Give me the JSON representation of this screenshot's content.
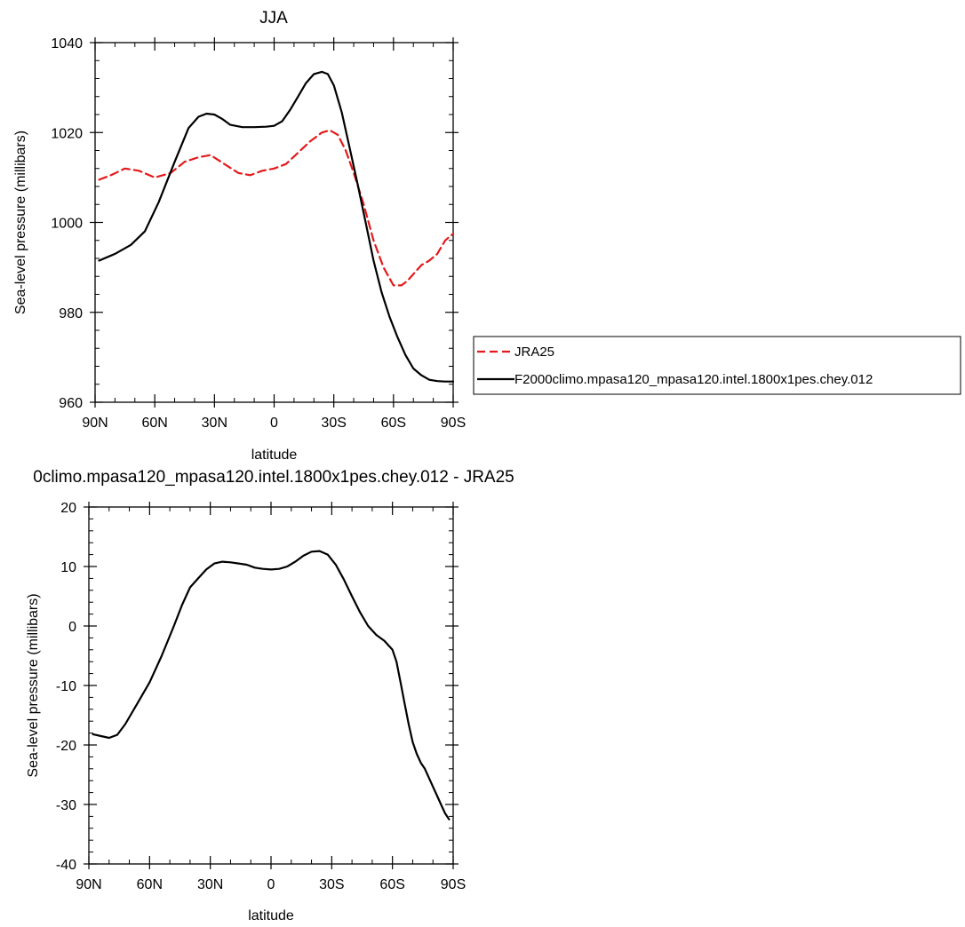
{
  "chart_data": [
    {
      "type": "line",
      "title": "JJA",
      "xlabel": "latitude",
      "ylabel": "Sea-level pressure (millibars)",
      "xlim": [
        -90,
        90
      ],
      "ylim": [
        960,
        1040
      ],
      "xticks": [
        -90,
        -60,
        -30,
        0,
        30,
        60,
        90
      ],
      "xtick_labels": [
        "90N",
        "60N",
        "30N",
        "0",
        "30S",
        "60S",
        "90S"
      ],
      "yticks": [
        960,
        980,
        1000,
        1020,
        1040
      ],
      "ytick_labels": [
        "960",
        "980",
        "1000",
        "1020",
        "1040"
      ],
      "grid": false,
      "legend_position": "right",
      "series": [
        {
          "name": "JRA25",
          "color": "#e41a1c",
          "dash": "dashed",
          "x": [
            -88,
            -82,
            -75,
            -68,
            -60,
            -52,
            -45,
            -38,
            -32,
            -25,
            -18,
            -12,
            -6,
            0,
            6,
            12,
            18,
            24,
            28,
            32,
            36,
            40,
            45,
            50,
            55,
            60,
            64,
            67,
            70,
            74,
            78,
            82,
            86,
            90
          ],
          "y": [
            1009.5,
            1010.5,
            1012,
            1011.5,
            1010,
            1011,
            1013.5,
            1014.5,
            1015,
            1013,
            1011,
            1010.5,
            1011.5,
            1012,
            1013,
            1015.5,
            1018,
            1020,
            1020.5,
            1019.5,
            1016,
            1011,
            1004,
            996,
            990,
            986,
            986,
            987,
            988.5,
            990.5,
            991.5,
            993,
            996,
            997.5
          ]
        },
        {
          "name": "F2000climo.mpasa120_mpasa120.intel.1800x1pes.chey.012",
          "color": "#000000",
          "dash": "solid",
          "x": [
            -88,
            -80,
            -72,
            -65,
            -58,
            -50,
            -43,
            -38,
            -34,
            -30,
            -26,
            -22,
            -16,
            -10,
            -4,
            0,
            4,
            8,
            12,
            16,
            20,
            24,
            27,
            30,
            34,
            38,
            42,
            46,
            50,
            54,
            58,
            62,
            66,
            70,
            74,
            78,
            82,
            86,
            90
          ],
          "y": [
            991.5,
            993,
            995,
            998,
            1004.5,
            1013.5,
            1021,
            1023.5,
            1024.2,
            1024,
            1023,
            1021.7,
            1021.2,
            1021.2,
            1021.3,
            1021.5,
            1022.5,
            1025,
            1028,
            1031,
            1033,
            1033.5,
            1033,
            1030.5,
            1024.5,
            1016.5,
            1008.5,
            1000,
            991.5,
            984.5,
            979,
            974.5,
            970.5,
            967.5,
            966,
            965,
            964.7,
            964.6,
            964.6
          ]
        }
      ]
    },
    {
      "type": "line",
      "title": "0climo.mpasa120_mpasa120.intel.1800x1pes.chey.012 - JRA25",
      "xlabel": "latitude",
      "ylabel": "Sea-level pressure (millibars)",
      "xlim": [
        -90,
        90
      ],
      "ylim": [
        -40,
        20
      ],
      "xticks": [
        -90,
        -60,
        -30,
        0,
        30,
        60,
        90
      ],
      "xtick_labels": [
        "90N",
        "60N",
        "30N",
        "0",
        "30S",
        "60S",
        "90S"
      ],
      "yticks": [
        -40,
        -30,
        -20,
        -10,
        0,
        10,
        20
      ],
      "ytick_labels": [
        "-40",
        "-30",
        "-20",
        "-10",
        "0",
        "10",
        "20"
      ],
      "grid": false,
      "series": [
        {
          "color": "#000000",
          "dash": "solid",
          "x": [
            -88,
            -84,
            -80,
            -76,
            -72,
            -66,
            -60,
            -54,
            -48,
            -44,
            -40,
            -36,
            -32,
            -28,
            -24,
            -20,
            -16,
            -12,
            -8,
            -4,
            0,
            4,
            8,
            12,
            16,
            20,
            24,
            28,
            32,
            36,
            40,
            44,
            48,
            52,
            56,
            60,
            62,
            64,
            66,
            68,
            70,
            72,
            74,
            76,
            78,
            80,
            82,
            84,
            86,
            88
          ],
          "y": [
            -18.2,
            -18.5,
            -18.8,
            -18.3,
            -16.5,
            -13,
            -9.5,
            -5,
            0,
            3.5,
            6.5,
            8,
            9.5,
            10.5,
            10.8,
            10.7,
            10.5,
            10.3,
            9.8,
            9.6,
            9.5,
            9.6,
            10,
            10.8,
            11.8,
            12.5,
            12.6,
            12,
            10.3,
            7.8,
            5,
            2.3,
            0,
            -1.5,
            -2.5,
            -4,
            -6,
            -9.5,
            -13,
            -16.5,
            -19.5,
            -21.5,
            -23,
            -24,
            -25.5,
            -27,
            -28.5,
            -30,
            -31.5,
            -32.5
          ]
        }
      ]
    }
  ]
}
